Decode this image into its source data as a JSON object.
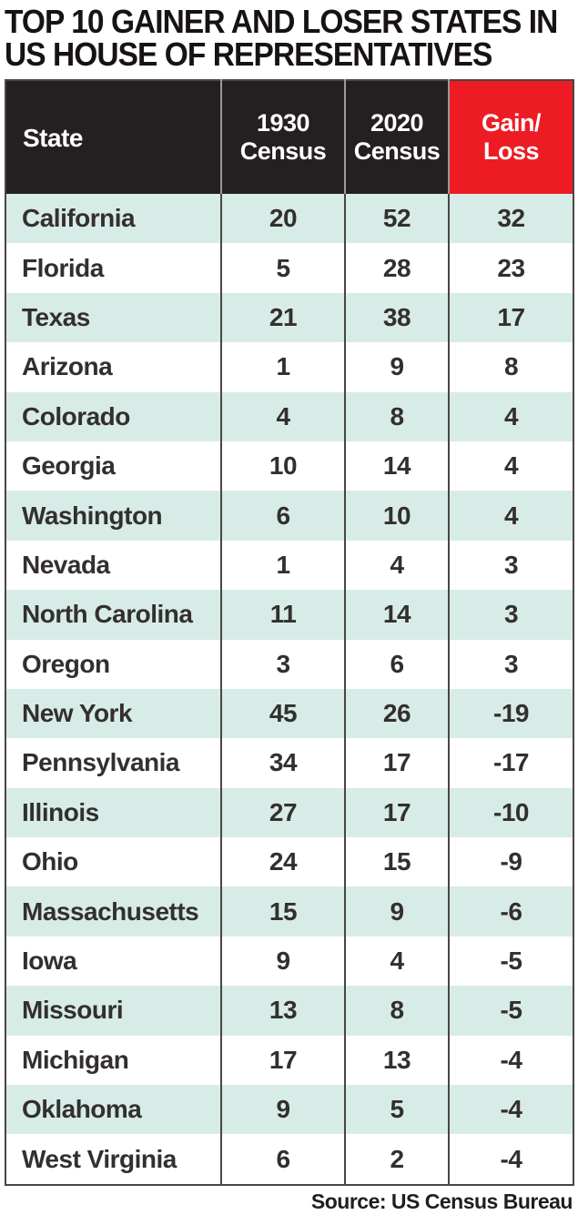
{
  "title": {
    "lines": [
      "TOP 10 GAINER AND LOSER STATES IN",
      "US HOUSE OF REPRESENTATIVES"
    ]
  },
  "source_note": "Source: US Census Bureau",
  "colors": {
    "header_bg": "#242021",
    "accent_red": "#ed1c24",
    "row_tint": "#d8ece7",
    "border_dark": "#4a4546",
    "header_divider": "#9a9a9a"
  },
  "chart_data": {
    "type": "table",
    "title": "TOP 10 GAINER AND LOSER STATES IN US HOUSE OF REPRESENTATIVES",
    "columns": [
      "State",
      "1930 Census",
      "2020 Census",
      "Gain/Loss"
    ],
    "rows": [
      [
        "California",
        20,
        52,
        32
      ],
      [
        "Florida",
        5,
        28,
        23
      ],
      [
        "Texas",
        21,
        38,
        17
      ],
      [
        "Arizona",
        1,
        9,
        8
      ],
      [
        "Colorado",
        4,
        8,
        4
      ],
      [
        "Georgia",
        10,
        14,
        4
      ],
      [
        "Washington",
        6,
        10,
        4
      ],
      [
        "Nevada",
        1,
        4,
        3
      ],
      [
        "North Carolina",
        11,
        14,
        3
      ],
      [
        "Oregon",
        3,
        6,
        3
      ],
      [
        "New York",
        45,
        26,
        -19
      ],
      [
        "Pennsylvania",
        34,
        17,
        -17
      ],
      [
        "Illinois",
        27,
        17,
        -10
      ],
      [
        "Ohio",
        24,
        15,
        -9
      ],
      [
        "Massachusetts",
        15,
        9,
        -6
      ],
      [
        "Iowa",
        9,
        4,
        -5
      ],
      [
        "Missouri",
        13,
        8,
        -5
      ],
      [
        "Michigan",
        17,
        13,
        -4
      ],
      [
        "Oklahoma",
        9,
        5,
        -4
      ],
      [
        "West Virginia",
        6,
        2,
        -4
      ]
    ],
    "notes": "Alternating mint/white row banding; black header row with red Gain/Loss column header; source: US Census Bureau"
  }
}
